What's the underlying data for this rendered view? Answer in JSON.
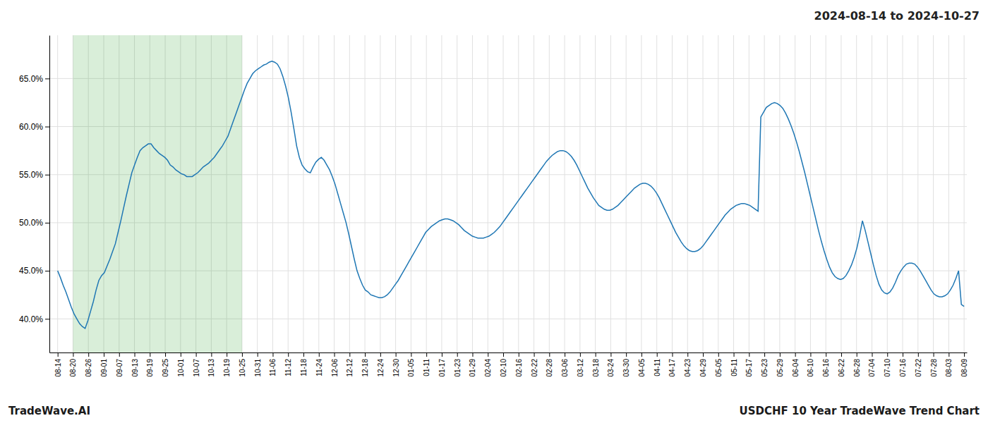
{
  "chart_data": {
    "type": "line",
    "title": "2024-08-14 to 2024-10-27",
    "annotations": [
      "TradeWave.AI",
      "USDCHF 10 Year TradeWave Trend Chart"
    ],
    "grid": true,
    "xlim": [
      -3,
      331
    ],
    "xticks": [
      {
        "value": 0,
        "label": "08-14"
      },
      {
        "value": 5.593220338983051,
        "label": "08-20"
      },
      {
        "value": 11.186440677966102,
        "label": "08-26"
      },
      {
        "value": 16.779661016949152,
        "label": "09-01"
      },
      {
        "value": 22.372881355932204,
        "label": "09-07"
      },
      {
        "value": 27.966101694915253,
        "label": "09-13"
      },
      {
        "value": 33.559322033898304,
        "label": "09-19"
      },
      {
        "value": 39.152542372881356,
        "label": "09-25"
      },
      {
        "value": 44.74576271186441,
        "label": "10-01"
      },
      {
        "value": 50.33898305084746,
        "label": "10-07"
      },
      {
        "value": 55.932203389830505,
        "label": "10-13"
      },
      {
        "value": 61.52542372881356,
        "label": "10-19"
      },
      {
        "value": 67.11864406779661,
        "label": "10-25"
      },
      {
        "value": 72.71186440677967,
        "label": "10-31"
      },
      {
        "value": 78.30508474576271,
        "label": "11-06"
      },
      {
        "value": 83.89830508474576,
        "label": "11-12"
      },
      {
        "value": 89.49152542372882,
        "label": "11-18"
      },
      {
        "value": 95.08474576271186,
        "label": "11-24"
      },
      {
        "value": 100.67796610169492,
        "label": "12-06"
      },
      {
        "value": 106.27118644067797,
        "label": "12-12"
      },
      {
        "value": 111.86440677966101,
        "label": "12-18"
      },
      {
        "value": 117.45762711864407,
        "label": "12-24"
      },
      {
        "value": 123.05084745762711,
        "label": "12-30"
      },
      {
        "value": 128.64406779661016,
        "label": "01-05"
      },
      {
        "value": 134.23728813559322,
        "label": "01-11"
      },
      {
        "value": 139.83050847457628,
        "label": "01-17"
      },
      {
        "value": 145.42372881355934,
        "label": "01-23"
      },
      {
        "value": 151.01694915254237,
        "label": "01-29"
      },
      {
        "value": 156.61016949152543,
        "label": "02-04"
      },
      {
        "value": 162.20338983050848,
        "label": "02-10"
      },
      {
        "value": 167.79661016949152,
        "label": "02-16"
      },
      {
        "value": 173.38983050847457,
        "label": "02-22"
      },
      {
        "value": 178.98305084745763,
        "label": "02-28"
      },
      {
        "value": 184.5762711864407,
        "label": "03-06"
      },
      {
        "value": 190.16949152542372,
        "label": "03-12"
      },
      {
        "value": 195.76271186440678,
        "label": "03-18"
      },
      {
        "value": 201.35593220338984,
        "label": "03-24"
      },
      {
        "value": 206.9491525423729,
        "label": "03-30"
      },
      {
        "value": 212.54237288135593,
        "label": "04-05"
      },
      {
        "value": 218.135593220339,
        "label": "04-11"
      },
      {
        "value": 223.72881355932205,
        "label": "04-17"
      },
      {
        "value": 229.32203389830508,
        "label": "04-23"
      },
      {
        "value": 234.91525423728814,
        "label": "04-29"
      },
      {
        "value": 240.5084745762712,
        "label": "05-05"
      },
      {
        "value": 246.10169491525423,
        "label": "05-11"
      },
      {
        "value": 251.6949152542373,
        "label": "05-17"
      },
      {
        "value": 257.2881355932204,
        "label": "05-23"
      },
      {
        "value": 262.8813559322034,
        "label": "05-29"
      },
      {
        "value": 268.47457627118644,
        "label": "06-04"
      },
      {
        "value": 274.0677966101695,
        "label": "06-10"
      },
      {
        "value": 279.66101694915255,
        "label": "06-16"
      },
      {
        "value": 285.2542372881356,
        "label": "06-22"
      },
      {
        "value": 290.8474576271186,
        "label": "06-28"
      },
      {
        "value": 296.4406779661017,
        "label": "07-04"
      },
      {
        "value": 302.03389830508473,
        "label": "07-10"
      },
      {
        "value": 307.6271186440678,
        "label": "07-16"
      },
      {
        "value": 313.22033898305085,
        "label": "07-22"
      },
      {
        "value": 318.8135593220339,
        "label": "07-28"
      },
      {
        "value": 324.40677966101697,
        "label": "08-03"
      },
      {
        "value": 330,
        "label": "08-09"
      }
    ],
    "shaded_span": [
      5.593220338983051,
      67.11864406779661
    ],
    "ylim": [
      0.365,
      0.695
    ],
    "yticks": [
      {
        "value": 0.4,
        "label": "40.0%"
      },
      {
        "value": 0.45,
        "label": "45.0%"
      },
      {
        "value": 0.5,
        "label": "50.0%"
      },
      {
        "value": 0.55,
        "label": "55.0%"
      },
      {
        "value": 0.6,
        "label": "60.0%"
      },
      {
        "value": 0.65,
        "label": "65.0%"
      }
    ],
    "values": [
      0.45,
      0.443,
      0.435,
      0.428,
      0.42,
      0.412,
      0.405,
      0.4,
      0.395,
      0.392,
      0.39,
      0.398,
      0.408,
      0.418,
      0.43,
      0.44,
      0.445,
      0.448,
      0.455,
      0.462,
      0.47,
      0.478,
      0.49,
      0.502,
      0.515,
      0.528,
      0.54,
      0.552,
      0.56,
      0.568,
      0.575,
      0.578,
      0.58,
      0.582,
      0.582,
      0.578,
      0.575,
      0.572,
      0.57,
      0.568,
      0.565,
      0.56,
      0.558,
      0.555,
      0.553,
      0.551,
      0.55,
      0.548,
      0.548,
      0.548,
      0.55,
      0.552,
      0.555,
      0.558,
      0.56,
      0.562,
      0.565,
      0.568,
      0.572,
      0.576,
      0.58,
      0.585,
      0.59,
      0.598,
      0.606,
      0.614,
      0.622,
      0.63,
      0.638,
      0.645,
      0.65,
      0.655,
      0.658,
      0.66,
      0.662,
      0.664,
      0.665,
      0.667,
      0.668,
      0.667,
      0.665,
      0.66,
      0.652,
      0.642,
      0.63,
      0.615,
      0.598,
      0.58,
      0.568,
      0.56,
      0.556,
      0.553,
      0.552,
      0.558,
      0.563,
      0.566,
      0.568,
      0.565,
      0.56,
      0.555,
      0.548,
      0.54,
      0.53,
      0.52,
      0.51,
      0.5,
      0.488,
      0.475,
      0.462,
      0.45,
      0.442,
      0.435,
      0.43,
      0.428,
      0.425,
      0.424,
      0.423,
      0.422,
      0.422,
      0.423,
      0.425,
      0.428,
      0.432,
      0.436,
      0.44,
      0.445,
      0.45,
      0.455,
      0.46,
      0.465,
      0.47,
      0.475,
      0.48,
      0.485,
      0.49,
      0.493,
      0.496,
      0.498,
      0.5,
      0.502,
      0.503,
      0.504,
      0.504,
      0.503,
      0.502,
      0.5,
      0.498,
      0.495,
      0.492,
      0.49,
      0.488,
      0.486,
      0.485,
      0.484,
      0.484,
      0.484,
      0.485,
      0.486,
      0.488,
      0.49,
      0.493,
      0.496,
      0.5,
      0.504,
      0.508,
      0.512,
      0.516,
      0.52,
      0.524,
      0.528,
      0.532,
      0.536,
      0.54,
      0.544,
      0.548,
      0.552,
      0.556,
      0.56,
      0.564,
      0.567,
      0.57,
      0.572,
      0.574,
      0.575,
      0.575,
      0.574,
      0.572,
      0.569,
      0.565,
      0.56,
      0.554,
      0.548,
      0.542,
      0.536,
      0.531,
      0.526,
      0.522,
      0.518,
      0.516,
      0.514,
      0.513,
      0.513,
      0.514,
      0.516,
      0.518,
      0.521,
      0.524,
      0.527,
      0.53,
      0.533,
      0.536,
      0.538,
      0.54,
      0.541,
      0.541,
      0.54,
      0.538,
      0.535,
      0.531,
      0.526,
      0.52,
      0.514,
      0.508,
      0.502,
      0.496,
      0.49,
      0.485,
      0.48,
      0.476,
      0.473,
      0.471,
      0.47,
      0.47,
      0.471,
      0.473,
      0.476,
      0.48,
      0.484,
      0.488,
      0.492,
      0.496,
      0.5,
      0.504,
      0.508,
      0.511,
      0.514,
      0.516,
      0.518,
      0.519,
      0.52,
      0.52,
      0.519,
      0.518,
      0.516,
      0.514,
      0.512,
      0.61,
      0.615,
      0.62,
      0.622,
      0.624,
      0.625,
      0.624,
      0.622,
      0.619,
      0.614,
      0.608,
      0.601,
      0.593,
      0.584,
      0.574,
      0.563,
      0.552,
      0.54,
      0.528,
      0.516,
      0.504,
      0.492,
      0.481,
      0.471,
      0.462,
      0.454,
      0.448,
      0.444,
      0.442,
      0.441,
      0.442,
      0.445,
      0.45,
      0.456,
      0.464,
      0.474,
      0.487,
      0.502,
      0.492,
      0.48,
      0.468,
      0.456,
      0.445,
      0.436,
      0.43,
      0.427,
      0.426,
      0.428,
      0.432,
      0.438,
      0.445,
      0.45,
      0.454,
      0.457,
      0.458,
      0.458,
      0.457,
      0.454,
      0.45,
      0.445,
      0.44,
      0.435,
      0.43,
      0.426,
      0.424,
      0.423,
      0.423,
      0.424,
      0.426,
      0.43,
      0.435,
      0.442,
      0.45,
      0.415,
      0.413
    ]
  }
}
